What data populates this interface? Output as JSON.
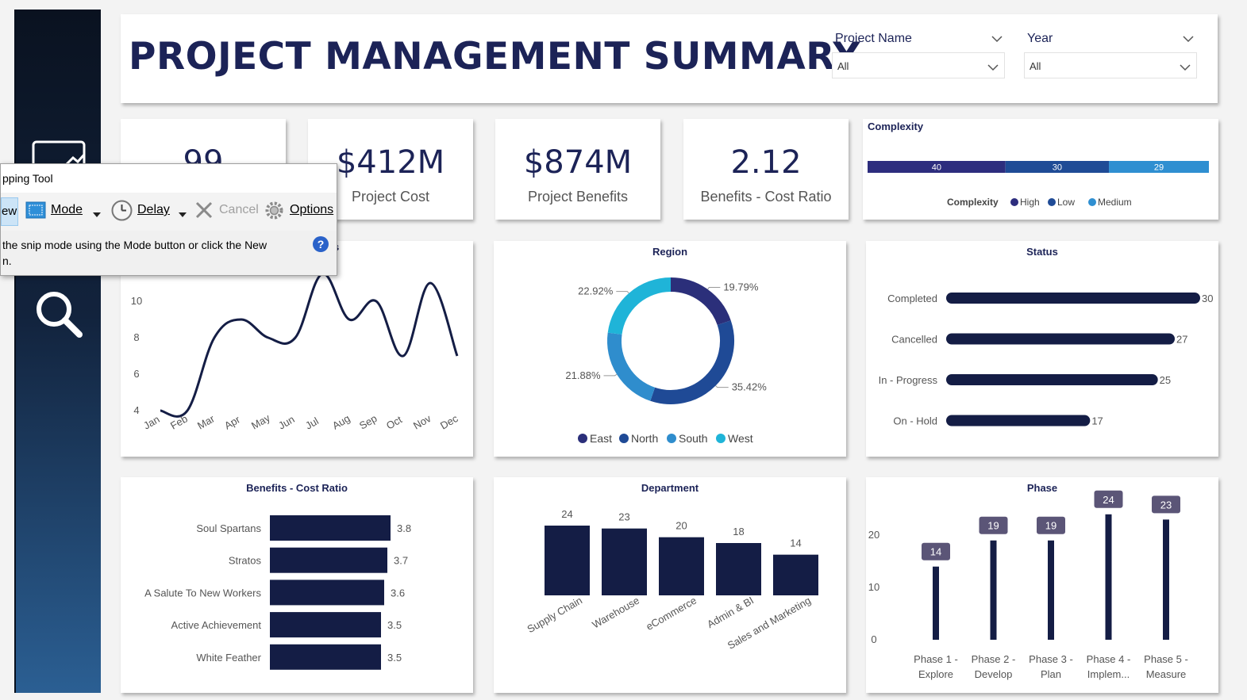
{
  "header": {
    "title": "PROJECT MANAGEMENT SUMMARY",
    "filters": [
      {
        "label": "Project Name",
        "value": "All"
      },
      {
        "label": "Year",
        "value": "All"
      }
    ]
  },
  "kpis": [
    {
      "value": "99",
      "label": ""
    },
    {
      "value": "$412M",
      "label": "Project Cost"
    },
    {
      "value": "$874M",
      "label": "Project Benefits"
    },
    {
      "value": "2.12",
      "label": "Benefits - Cost Ratio"
    }
  ],
  "snipping_tool": {
    "title": "pping Tool",
    "new_label": "ew",
    "mode_label": "Mode",
    "delay_label": "Delay",
    "cancel_label": "Cancel",
    "options_label": "Options",
    "message": "the snip mode using the Mode button or click the New\nn.",
    "help_glyph": "?"
  },
  "colors": {
    "navy": "#1c2357",
    "dark": "#141d45",
    "high": "#2d2d7e",
    "low": "#1f4b96",
    "medium": "#2f8fd1",
    "east": "#2b2f7a",
    "north": "#1f4a96",
    "south": "#2f8dcd",
    "west": "#1fb4d8",
    "phase_label": "#5b5577"
  },
  "chart_data": [
    {
      "id": "complexity",
      "type": "bar",
      "orientation": "horizontal-stacked",
      "title": "Complexity",
      "legend_title": "Complexity",
      "series": [
        {
          "name": "High",
          "value": 40
        },
        {
          "name": "Low",
          "value": 30
        },
        {
          "name": "Medium",
          "value": 29
        }
      ]
    },
    {
      "id": "monthly",
      "type": "line",
      "title_fragment": "s",
      "categories": [
        "Jan",
        "Feb",
        "Mar",
        "Apr",
        "May",
        "Jun",
        "Jul",
        "Aug",
        "Sep",
        "Oct",
        "Nov",
        "Dec"
      ],
      "values": [
        4,
        4,
        8,
        9,
        8,
        8,
        11.5,
        9,
        10,
        7,
        11,
        7
      ],
      "y_ticks": [
        "4",
        "6",
        "8",
        "10"
      ],
      "ylim": [
        4,
        12
      ]
    },
    {
      "id": "region",
      "type": "pie",
      "variant": "donut",
      "title": "Region",
      "series": [
        {
          "name": "East",
          "value": 19.79,
          "label": "19.79%"
        },
        {
          "name": "North",
          "value": 35.42,
          "label": "35.42%"
        },
        {
          "name": "South",
          "value": 21.88,
          "label": "21.88%"
        },
        {
          "name": "West",
          "value": 22.92,
          "label": "22.92%"
        }
      ]
    },
    {
      "id": "status",
      "type": "bar",
      "orientation": "horizontal",
      "title": "Status",
      "categories": [
        "Completed",
        "Cancelled",
        "In - Progress",
        "On - Hold"
      ],
      "values": [
        30,
        27,
        25,
        17
      ]
    },
    {
      "id": "bcr",
      "type": "bar",
      "orientation": "horizontal",
      "title": "Benefits - Cost Ratio",
      "categories": [
        "Soul Spartans",
        "Stratos",
        "A Salute To New Workers",
        "Active Achievement",
        "White Feather"
      ],
      "values": [
        3.8,
        3.7,
        3.6,
        3.5,
        3.5
      ]
    },
    {
      "id": "department",
      "type": "bar",
      "orientation": "vertical",
      "title": "Department",
      "categories": [
        "Supply Chain",
        "Warehouse",
        "eCommerce",
        "Admin & BI",
        "Sales and Marketing"
      ],
      "values": [
        24,
        23,
        20,
        18,
        14
      ]
    },
    {
      "id": "phase",
      "type": "bar",
      "orientation": "vertical-lollipop",
      "title": "Phase",
      "categories": [
        [
          "Phase 1 -",
          "Explore"
        ],
        [
          "Phase 2 -",
          "Develop"
        ],
        [
          "Phase 3 -",
          "Plan"
        ],
        [
          "Phase 4 -",
          "Implem..."
        ],
        [
          "Phase 5 -",
          "Measure"
        ]
      ],
      "values": [
        14,
        19,
        19,
        24,
        23
      ],
      "y_ticks": [
        "0",
        "10",
        "20"
      ],
      "ylim": [
        0,
        27
      ]
    }
  ]
}
